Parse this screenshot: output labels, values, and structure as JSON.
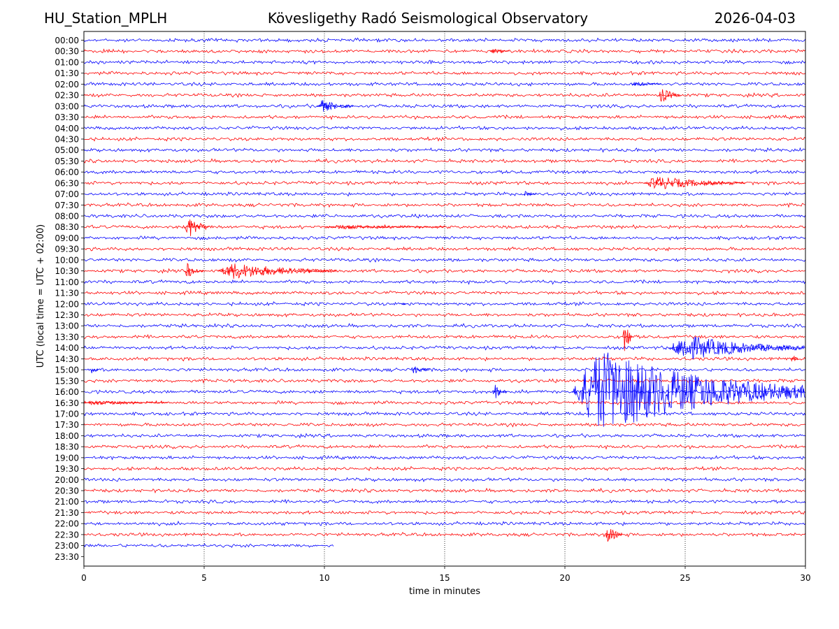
{
  "header": {
    "station": "HU_Station_MPLH",
    "observatory": "Kövesligethy Radó Seismological Observatory",
    "date": "2026-04-03"
  },
  "chart_data": {
    "type": "line",
    "title": "Kövesligethy Radó Seismological Observatory",
    "xlabel": "time in minutes",
    "ylabel": "UTC (local time = UTC + 02:00)",
    "xlim": [
      0,
      30
    ],
    "x_ticks": [
      0,
      5,
      10,
      15,
      20,
      25,
      30
    ],
    "grid": "vertical dotted lines at x ticks",
    "colors": {
      "even_rows": "#0000ff",
      "odd_rows": "#ff0000"
    },
    "rows": [
      "00:00",
      "00:30",
      "01:00",
      "01:30",
      "02:00",
      "02:30",
      "03:00",
      "03:30",
      "04:00",
      "04:30",
      "05:00",
      "05:30",
      "06:00",
      "06:30",
      "07:00",
      "07:30",
      "08:00",
      "08:30",
      "09:00",
      "09:30",
      "10:00",
      "10:30",
      "11:00",
      "11:30",
      "12:00",
      "12:30",
      "13:00",
      "13:30",
      "14:00",
      "14:30",
      "15:00",
      "15:30",
      "16:00",
      "16:30",
      "17:00",
      "17:30",
      "18:00",
      "18:30",
      "19:00",
      "19:30",
      "20:00",
      "20:30",
      "21:00",
      "21:30",
      "22:00",
      "22:30",
      "23:00",
      "23:30"
    ],
    "last_row_end_minute": 10.4,
    "events": [
      {
        "row": "00:30",
        "start": 16.9,
        "end": 17.7,
        "amplitude": 0.6
      },
      {
        "row": "02:00",
        "start": 22.8,
        "end": 24.0,
        "amplitude": 0.5
      },
      {
        "row": "02:30",
        "start": 23.9,
        "end": 24.8,
        "amplitude": 1.6
      },
      {
        "row": "03:00",
        "start": 9.7,
        "end": 11.2,
        "amplitude": 1.3
      },
      {
        "row": "06:30",
        "start": 23.3,
        "end": 27.5,
        "amplitude": 1.4
      },
      {
        "row": "07:00",
        "start": 18.3,
        "end": 18.8,
        "amplitude": 0.7
      },
      {
        "row": "08:30",
        "start": 4.2,
        "end": 5.2,
        "amplitude": 2.5
      },
      {
        "row": "08:30",
        "start": 10.0,
        "end": 15.0,
        "amplitude": 0.45
      },
      {
        "row": "10:30",
        "start": 4.2,
        "end": 5.0,
        "amplitude": 1.6
      },
      {
        "row": "10:30",
        "start": 5.6,
        "end": 10.5,
        "amplitude": 1.7
      },
      {
        "row": "12:00",
        "start": 13.2,
        "end": 13.4,
        "amplitude": 0.5
      },
      {
        "row": "13:30",
        "start": 22.4,
        "end": 22.8,
        "amplitude": 4.0
      },
      {
        "row": "14:00",
        "start": 24.3,
        "end": 30.0,
        "amplitude": 2.6
      },
      {
        "row": "14:30",
        "start": 29.4,
        "end": 29.7,
        "amplitude": 1.2
      },
      {
        "row": "15:00",
        "start": 0.3,
        "end": 0.6,
        "amplitude": 1.0
      },
      {
        "row": "15:00",
        "start": 13.6,
        "end": 14.4,
        "amplitude": 1.0
      },
      {
        "row": "16:00",
        "start": 17.0,
        "end": 17.6,
        "amplitude": 1.6
      },
      {
        "row": "16:00",
        "start": 20.3,
        "end": 30.0,
        "amplitude": 8.5
      },
      {
        "row": "16:30",
        "start": 0.0,
        "end": 3.5,
        "amplitude": 0.5
      },
      {
        "row": "22:30",
        "start": 21.7,
        "end": 22.4,
        "amplitude": 1.8
      }
    ]
  }
}
